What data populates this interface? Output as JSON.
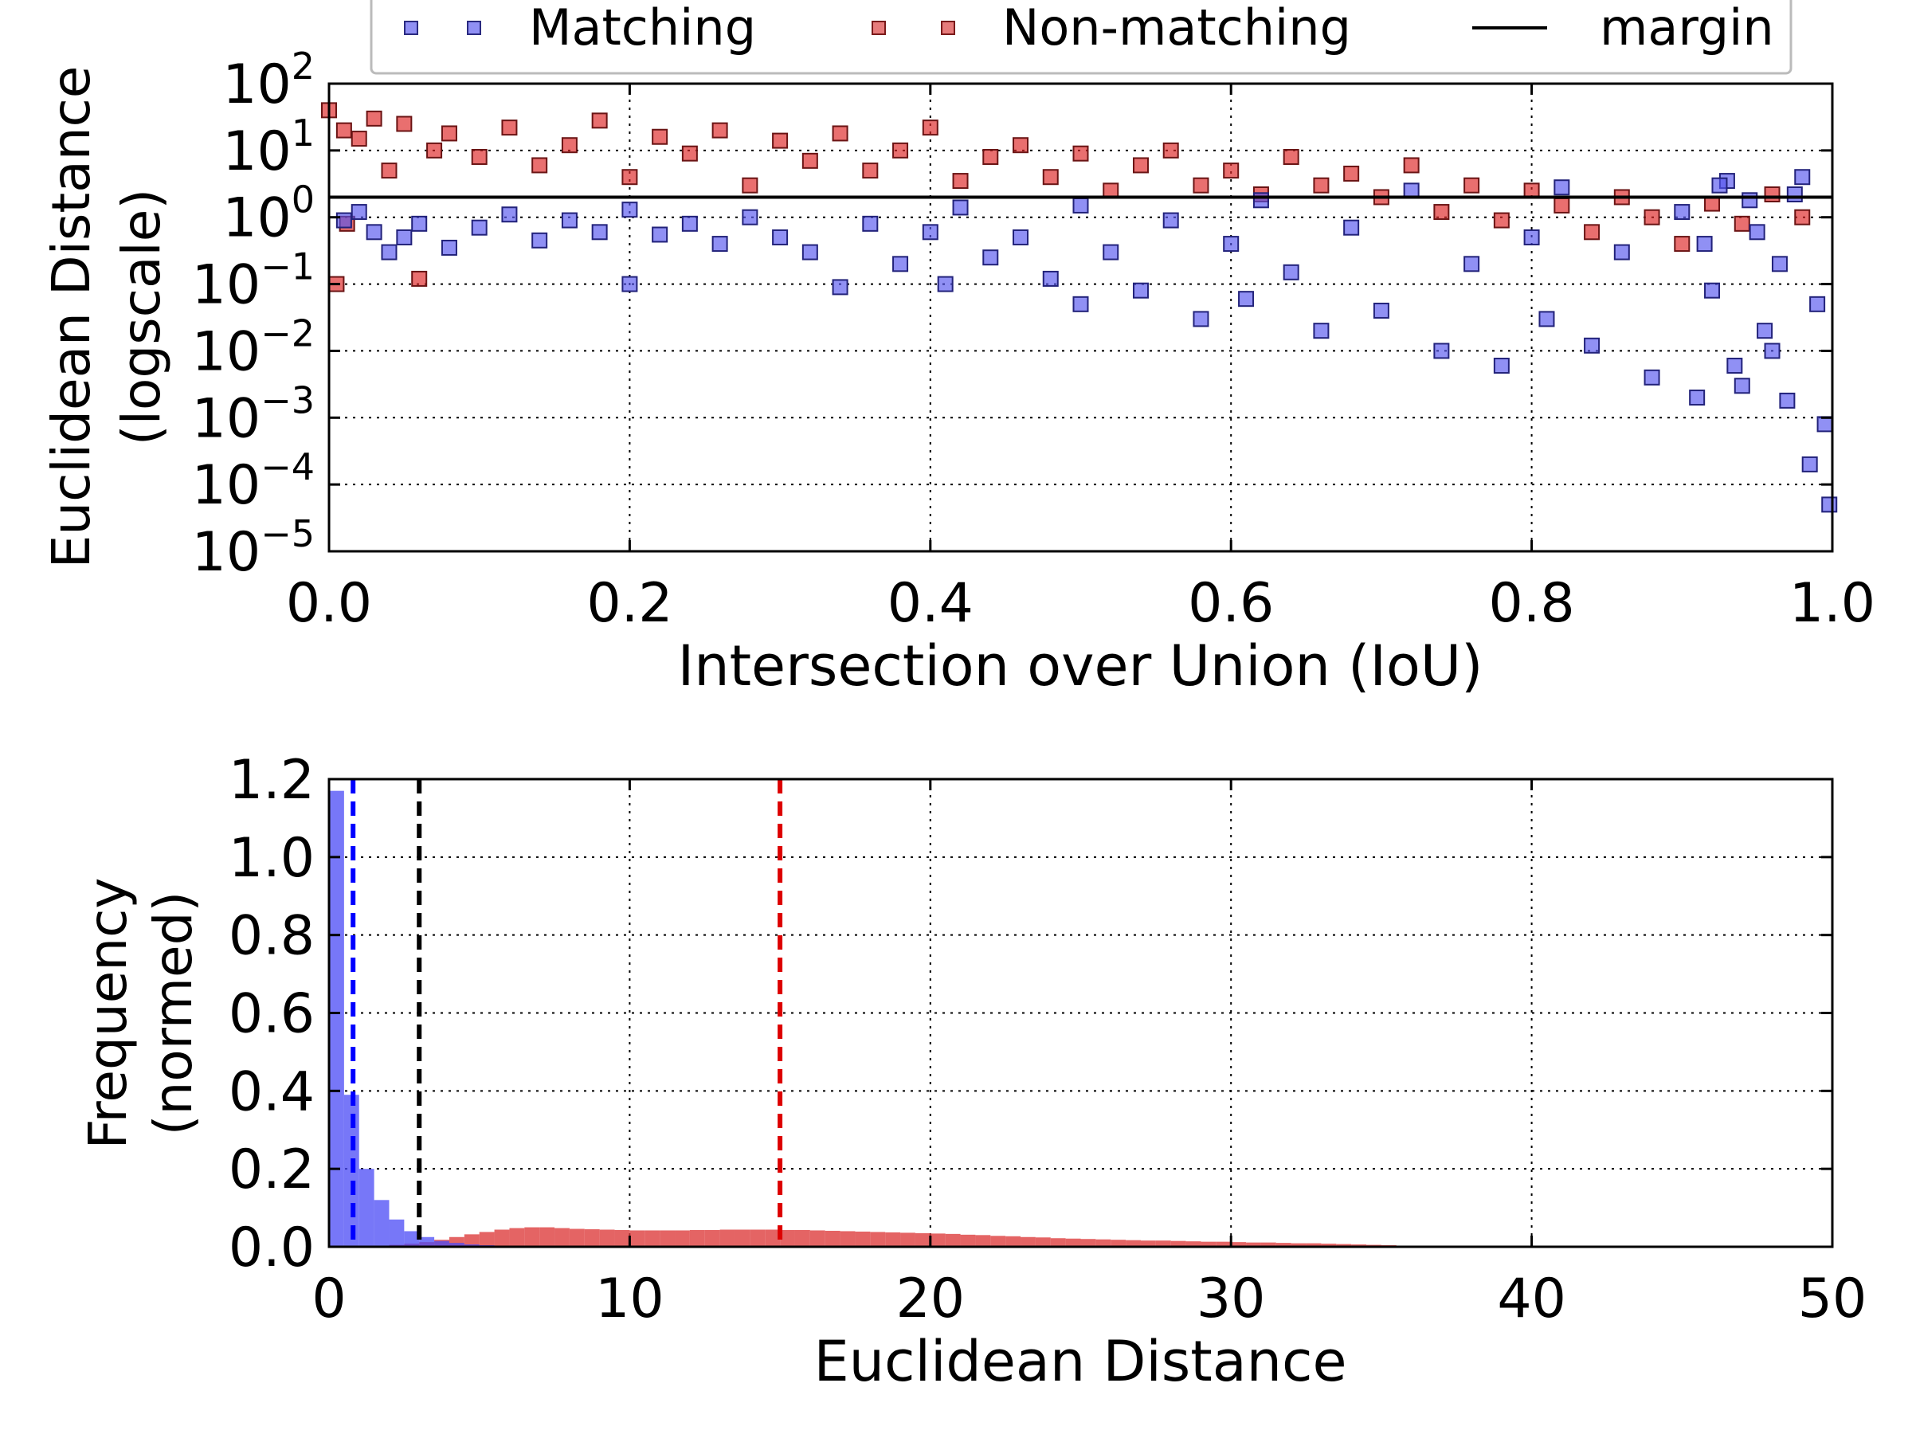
{
  "chart_data": [
    {
      "type": "scatter",
      "xlabel": "Intersection over Union (IoU)",
      "ylabel_lines": [
        "Euclidean Distance",
        "(logscale)"
      ],
      "xlim": [
        0.0,
        1.0
      ],
      "ylim": [
        1e-05,
        100
      ],
      "yscale": "log",
      "x_ticks": [
        "0.0",
        "0.2",
        "0.4",
        "0.6",
        "0.8",
        "1.0"
      ],
      "y_ticks": [
        {
          "base": "10",
          "exp": "-5"
        },
        {
          "base": "10",
          "exp": "-4"
        },
        {
          "base": "10",
          "exp": "-3"
        },
        {
          "base": "10",
          "exp": "-2"
        },
        {
          "base": "10",
          "exp": "-1"
        },
        {
          "base": "10",
          "exp": "0"
        },
        {
          "base": "10",
          "exp": "1"
        },
        {
          "base": "10",
          "exp": "2"
        }
      ],
      "grid": true,
      "legend": {
        "placement": "top",
        "entries": [
          {
            "label": "Matching",
            "marker": "square",
            "color": "#6b6bf0"
          },
          {
            "label": "Non-matching",
            "marker": "square",
            "color": "#e05a5a"
          },
          {
            "label": "margin",
            "marker": "line",
            "color": "#000000"
          }
        ]
      },
      "series": [
        {
          "name": "Matching",
          "color": "#5555ee",
          "points": [
            [
              0.01,
              0.9
            ],
            [
              0.02,
              1.2
            ],
            [
              0.03,
              0.6
            ],
            [
              0.04,
              0.3
            ],
            [
              0.05,
              0.5
            ],
            [
              0.06,
              0.8
            ],
            [
              0.08,
              0.35
            ],
            [
              0.1,
              0.7
            ],
            [
              0.12,
              1.1
            ],
            [
              0.14,
              0.45
            ],
            [
              0.16,
              0.9
            ],
            [
              0.18,
              0.6
            ],
            [
              0.2,
              0.1
            ],
            [
              0.2,
              1.3
            ],
            [
              0.22,
              0.55
            ],
            [
              0.24,
              0.8
            ],
            [
              0.26,
              0.4
            ],
            [
              0.28,
              1.0
            ],
            [
              0.3,
              0.5
            ],
            [
              0.32,
              0.3
            ],
            [
              0.34,
              0.09
            ],
            [
              0.36,
              0.8
            ],
            [
              0.38,
              0.2
            ],
            [
              0.4,
              0.6
            ],
            [
              0.41,
              0.1
            ],
            [
              0.42,
              1.4
            ],
            [
              0.44,
              0.25
            ],
            [
              0.46,
              0.5
            ],
            [
              0.48,
              0.12
            ],
            [
              0.5,
              0.05
            ],
            [
              0.5,
              1.5
            ],
            [
              0.52,
              0.3
            ],
            [
              0.54,
              0.08
            ],
            [
              0.56,
              0.9
            ],
            [
              0.58,
              0.03
            ],
            [
              0.6,
              0.4
            ],
            [
              0.61,
              0.06
            ],
            [
              0.62,
              1.8
            ],
            [
              0.64,
              0.15
            ],
            [
              0.66,
              0.02
            ],
            [
              0.68,
              0.7
            ],
            [
              0.7,
              0.04
            ],
            [
              0.72,
              2.5
            ],
            [
              0.74,
              0.01
            ],
            [
              0.76,
              0.2
            ],
            [
              0.78,
              0.006
            ],
            [
              0.8,
              0.5
            ],
            [
              0.81,
              0.03
            ],
            [
              0.82,
              2.8
            ],
            [
              0.84,
              0.012
            ],
            [
              0.86,
              0.3
            ],
            [
              0.88,
              0.004
            ],
            [
              0.9,
              1.2
            ],
            [
              0.91,
              0.002
            ],
            [
              0.92,
              0.08
            ],
            [
              0.93,
              3.5
            ],
            [
              0.94,
              0.003
            ],
            [
              0.95,
              0.6
            ],
            [
              0.96,
              0.01
            ],
            [
              0.97,
              0.0018
            ],
            [
              0.98,
              4.0
            ],
            [
              0.99,
              0.05
            ],
            [
              0.985,
              0.0002
            ],
            [
              0.995,
              0.0008
            ],
            [
              0.998,
              5e-05
            ],
            [
              0.975,
              2.2
            ],
            [
              0.965,
              0.2
            ],
            [
              0.955,
              0.02
            ],
            [
              0.945,
              1.8
            ],
            [
              0.935,
              0.006
            ],
            [
              0.925,
              3.0
            ],
            [
              0.915,
              0.4
            ]
          ]
        },
        {
          "name": "Non-matching",
          "color": "#dd2222",
          "points": [
            [
              0.0,
              40
            ],
            [
              0.005,
              0.1
            ],
            [
              0.01,
              20
            ],
            [
              0.012,
              0.8
            ],
            [
              0.02,
              15
            ],
            [
              0.03,
              30
            ],
            [
              0.04,
              5
            ],
            [
              0.05,
              25
            ],
            [
              0.06,
              0.12
            ],
            [
              0.07,
              10
            ],
            [
              0.08,
              18
            ],
            [
              0.1,
              8
            ],
            [
              0.12,
              22
            ],
            [
              0.14,
              6
            ],
            [
              0.16,
              12
            ],
            [
              0.18,
              28
            ],
            [
              0.2,
              4
            ],
            [
              0.22,
              16
            ],
            [
              0.24,
              9
            ],
            [
              0.26,
              20
            ],
            [
              0.28,
              3
            ],
            [
              0.3,
              14
            ],
            [
              0.32,
              7
            ],
            [
              0.34,
              18
            ],
            [
              0.36,
              5
            ],
            [
              0.38,
              10
            ],
            [
              0.4,
              22
            ],
            [
              0.42,
              3.5
            ],
            [
              0.44,
              8
            ],
            [
              0.46,
              12
            ],
            [
              0.48,
              4
            ],
            [
              0.5,
              9
            ],
            [
              0.52,
              2.5
            ],
            [
              0.54,
              6
            ],
            [
              0.56,
              10
            ],
            [
              0.58,
              3
            ],
            [
              0.6,
              5
            ],
            [
              0.62,
              2.2
            ],
            [
              0.64,
              8
            ],
            [
              0.66,
              3
            ],
            [
              0.68,
              4.5
            ],
            [
              0.7,
              2.0
            ],
            [
              0.72,
              6
            ],
            [
              0.74,
              1.2
            ],
            [
              0.76,
              3
            ],
            [
              0.78,
              0.9
            ],
            [
              0.8,
              2.5
            ],
            [
              0.82,
              1.5
            ],
            [
              0.84,
              0.6
            ],
            [
              0.86,
              2.0
            ],
            [
              0.88,
              1.0
            ],
            [
              0.9,
              0.4
            ],
            [
              0.92,
              1.6
            ],
            [
              0.94,
              0.8
            ],
            [
              0.96,
              2.2
            ],
            [
              0.98,
              1.0
            ]
          ]
        }
      ],
      "margin_line": {
        "name": "margin",
        "y": 2.0,
        "color": "#000000"
      }
    },
    {
      "type": "histogram",
      "xlabel": "Euclidean Distance",
      "ylabel_lines": [
        "Frequency",
        "(normed)"
      ],
      "xlim": [
        0,
        50
      ],
      "ylim": [
        0.0,
        1.2
      ],
      "x_ticks": [
        "0",
        "10",
        "20",
        "30",
        "40",
        "50"
      ],
      "y_ticks": [
        "0.0",
        "0.2",
        "0.4",
        "0.6",
        "0.8",
        "1.0",
        "1.2"
      ],
      "grid": true,
      "bin_width": 0.5,
      "series": [
        {
          "name": "Matching",
          "color": "#4a4af5",
          "bins_start": 0,
          "values": [
            1.17,
            0.39,
            0.2,
            0.12,
            0.07,
            0.04,
            0.025,
            0.015,
            0.01,
            0.006,
            0.004,
            0.002
          ]
        },
        {
          "name": "Non-matching",
          "color": "#dd3d3d",
          "bins_start": 0,
          "values": [
            0.0,
            0.001,
            0.002,
            0.003,
            0.005,
            0.008,
            0.012,
            0.018,
            0.025,
            0.032,
            0.038,
            0.044,
            0.048,
            0.05,
            0.05,
            0.048,
            0.046,
            0.045,
            0.044,
            0.043,
            0.042,
            0.042,
            0.042,
            0.042,
            0.043,
            0.043,
            0.044,
            0.044,
            0.044,
            0.044,
            0.043,
            0.043,
            0.042,
            0.041,
            0.04,
            0.039,
            0.038,
            0.037,
            0.036,
            0.035,
            0.034,
            0.033,
            0.031,
            0.03,
            0.028,
            0.027,
            0.025,
            0.024,
            0.022,
            0.021,
            0.02,
            0.019,
            0.018,
            0.017,
            0.016,
            0.016,
            0.015,
            0.014,
            0.013,
            0.013,
            0.012,
            0.011,
            0.011,
            0.01,
            0.009,
            0.009,
            0.008,
            0.007,
            0.006,
            0.005,
            0.004,
            0.003,
            0.003,
            0.002,
            0.002,
            0.002,
            0.001,
            0.001,
            0.001,
            0.001
          ]
        }
      ],
      "vlines": [
        {
          "x": 0.8,
          "color": "#0000ff",
          "style": "dashed"
        },
        {
          "x": 3.0,
          "color": "#000000",
          "style": "dashed"
        },
        {
          "x": 15.0,
          "color": "#dd0000",
          "style": "dashed"
        }
      ]
    }
  ]
}
